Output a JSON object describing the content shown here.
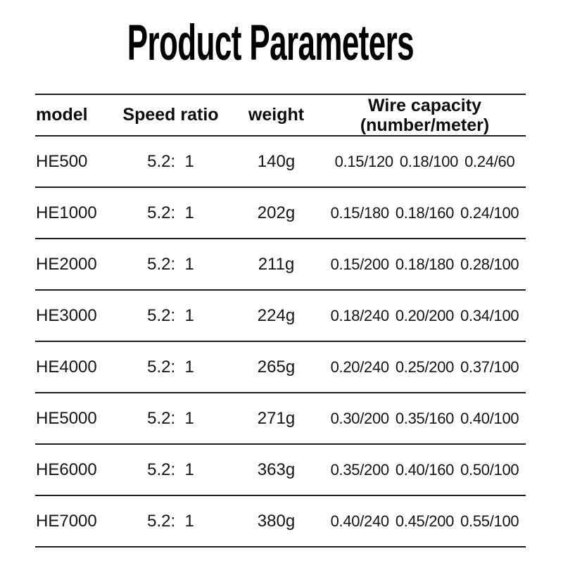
{
  "page": {
    "title": "Product Parameters"
  },
  "colors": {
    "background": "#ffffff",
    "text": "#141414",
    "line": "#1c1c1c"
  },
  "table": {
    "headers": {
      "model": "model",
      "speed_ratio": "Speed ratio",
      "weight": "weight",
      "wire_capacity_line1": "Wire capacity",
      "wire_capacity_line2": "(number/meter)"
    },
    "rows": [
      {
        "model": "HE500",
        "speed_ratio": "5.2:  1",
        "weight": "140g",
        "wire": [
          "0.15/120",
          "0.18/100",
          "0.24/60"
        ]
      },
      {
        "model": "HE1000",
        "speed_ratio": "5.2:  1",
        "weight": "202g",
        "wire": [
          "0.15/180",
          "0.18/160",
          "0.24/100"
        ]
      },
      {
        "model": "HE2000",
        "speed_ratio": "5.2:  1",
        "weight": "211g",
        "wire": [
          "0.15/200",
          "0.18/180",
          "0.28/100"
        ]
      },
      {
        "model": "HE3000",
        "speed_ratio": "5.2:  1",
        "weight": "224g",
        "wire": [
          "0.18/240",
          "0.20/200",
          "0.34/100"
        ]
      },
      {
        "model": "HE4000",
        "speed_ratio": "5.2:  1",
        "weight": "265g",
        "wire": [
          "0.20/240",
          "0.25/200",
          "0.37/100"
        ]
      },
      {
        "model": "HE5000",
        "speed_ratio": "5.2:  1",
        "weight": "271g",
        "wire": [
          "0.30/200",
          "0.35/160",
          "0.40/100"
        ]
      },
      {
        "model": "HE6000",
        "speed_ratio": "5.2:  1",
        "weight": "363g",
        "wire": [
          "0.35/200",
          "0.40/160",
          "0.50/100"
        ]
      },
      {
        "model": "HE7000",
        "speed_ratio": "5.2:  1",
        "weight": "380g",
        "wire": [
          "0.40/240",
          "0.45/200",
          "0.55/100"
        ]
      }
    ]
  }
}
